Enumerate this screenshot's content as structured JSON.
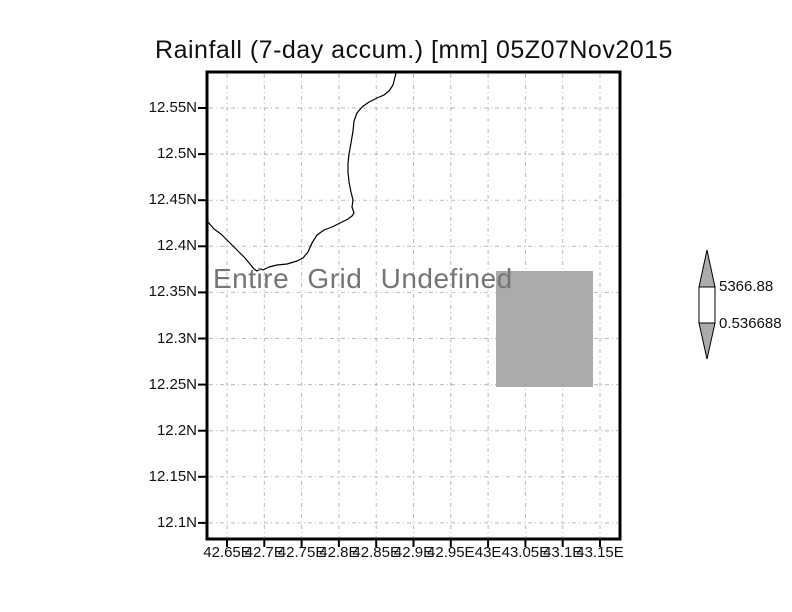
{
  "title": "Rainfall (7-day accum.) [mm] 05Z07Nov2015",
  "plot": {
    "undefined_text": "Entire Grid Undefined",
    "lat_labels": [
      "12.55N",
      "12.5N",
      "12.45N",
      "12.4N",
      "12.35N",
      "12.3N",
      "12.25N",
      "12.2N",
      "12.15N",
      "12.1N"
    ],
    "lon_labels": [
      "42.65E",
      "42.7E",
      "42.75E",
      "42.8E",
      "42.85E",
      "42.9E",
      "42.95E",
      "43E",
      "43.05E",
      "43.1E",
      "43.15E"
    ]
  },
  "colorbar": {
    "max_label": "5366.88",
    "min_label": "0.536688"
  },
  "colors": {
    "shade_gray": "#ababab",
    "grid_gray": "#b9b9b9",
    "undefined_text_gray": "#757575",
    "frame_black": "#000000"
  },
  "chart_data": {
    "type": "heatmap",
    "title": "Rainfall (7-day accum.) [mm] 05Z07Nov2015",
    "variable": "Rainfall (7-day accum.)",
    "units": "mm",
    "time": "05Z07Nov2015",
    "x_axis": "longitude",
    "y_axis": "latitude",
    "x_tick_labels": [
      "42.65E",
      "42.7E",
      "42.75E",
      "42.8E",
      "42.85E",
      "42.9E",
      "42.95E",
      "43E",
      "43.05E",
      "43.1E",
      "43.15E"
    ],
    "y_tick_labels": [
      "12.55N",
      "12.5N",
      "12.45N",
      "12.4N",
      "12.35N",
      "12.3N",
      "12.25N",
      "12.2N",
      "12.15N",
      "12.1N"
    ],
    "grid": true,
    "basemap": "coastline outline",
    "annotation": "Entire Grid Undefined",
    "data_status": "all grid values undefined; single gray undefined-mask rectangle plotted",
    "undefined_mask_region": {
      "lon_range_approx": [
        "43.0E",
        "43.14E"
      ],
      "lat_range_approx": [
        "12.25N",
        "12.37N"
      ]
    },
    "colorbar": {
      "position": "right",
      "min": 0.536688,
      "max": 5366.88,
      "labels": [
        "5366.88",
        "0.536688"
      ]
    }
  }
}
